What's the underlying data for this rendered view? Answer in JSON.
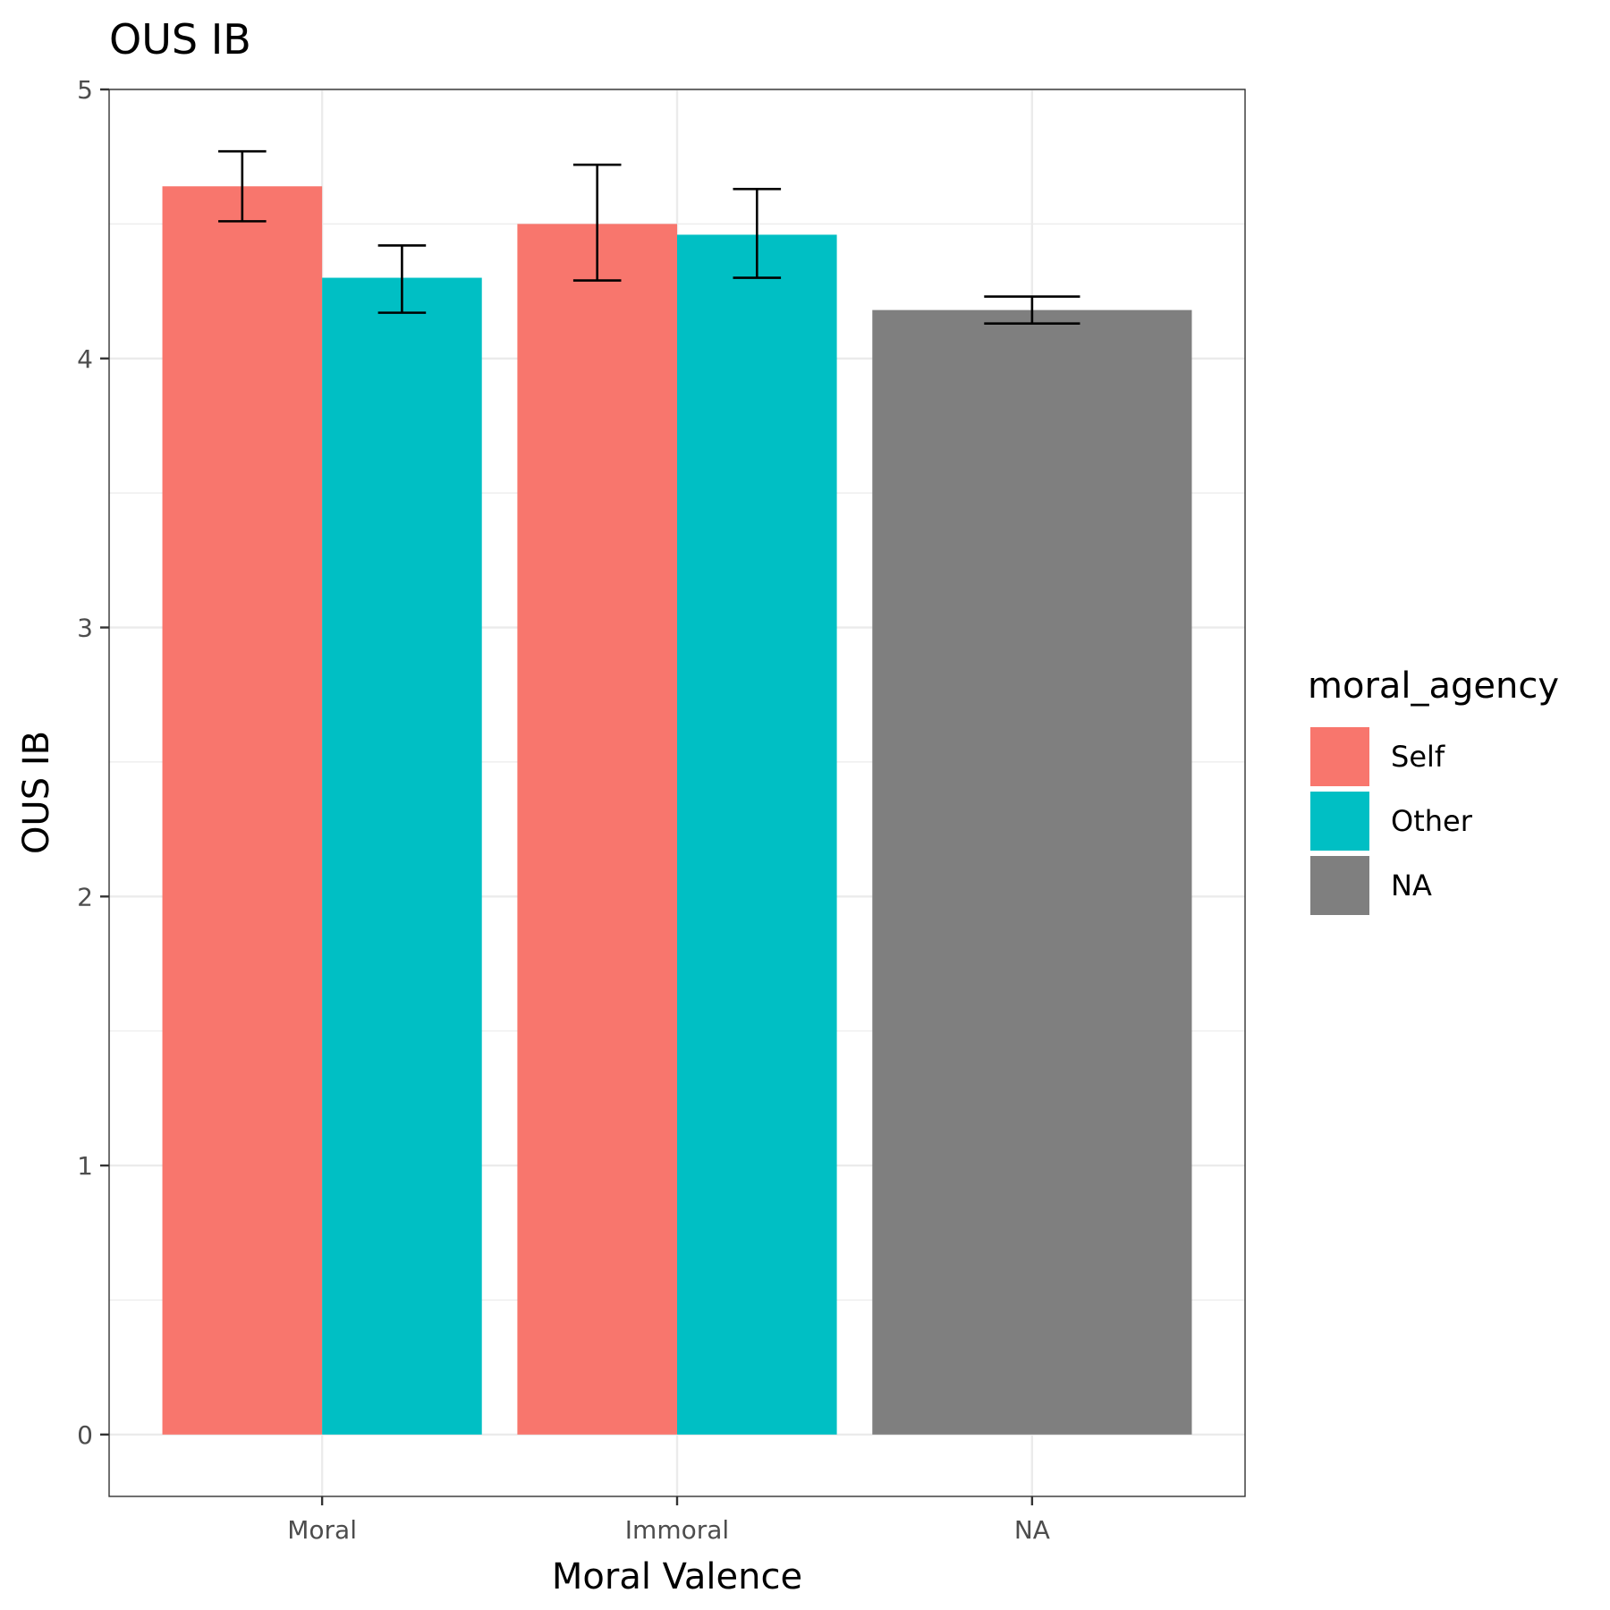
{
  "chart_data": {
    "type": "bar",
    "title": "OUS IB",
    "xlabel": "Moral Valence",
    "ylabel": "OUS IB",
    "categories": [
      "Moral",
      "Immoral",
      "NA"
    ],
    "yticks": [
      "0",
      "1",
      "2",
      "3",
      "4",
      "5"
    ],
    "ylim": [
      -0.23,
      5
    ],
    "grid": true,
    "legend": {
      "title": "moral_agency",
      "position": "right",
      "entries": [
        {
          "label": "Self",
          "color": "#F8766D"
        },
        {
          "label": "Other",
          "color": "#00BFC4"
        },
        {
          "label": "NA",
          "color": "#7F7F7F"
        }
      ]
    },
    "bars": [
      {
        "category": "Moral",
        "group": "Self",
        "value": 4.64,
        "err_low": 4.51,
        "err_high": 4.77
      },
      {
        "category": "Moral",
        "group": "Other",
        "value": 4.3,
        "err_low": 4.17,
        "err_high": 4.42
      },
      {
        "category": "Immoral",
        "group": "Self",
        "value": 4.5,
        "err_low": 4.29,
        "err_high": 4.72
      },
      {
        "category": "Immoral",
        "group": "Other",
        "value": 4.46,
        "err_low": 4.3,
        "err_high": 4.63
      },
      {
        "category": "NA",
        "group": "NA",
        "value": 4.18,
        "err_low": 4.13,
        "err_high": 4.23
      }
    ]
  }
}
